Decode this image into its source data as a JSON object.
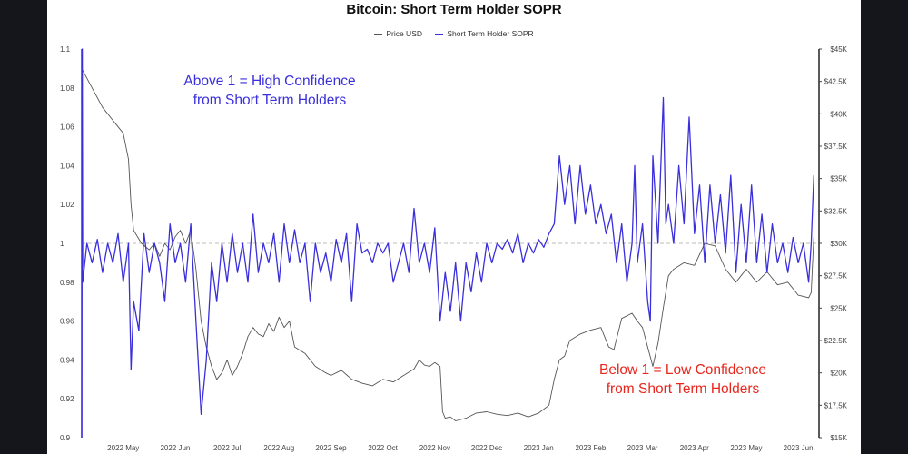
{
  "chart_data": {
    "type": "line",
    "title": "Bitcoin: Short Term Holder SOPR",
    "legend": [
      {
        "name": "Price USD",
        "color": "#555555"
      },
      {
        "name": "Short Term Holder SOPR",
        "color": "#3a2fdc"
      }
    ],
    "x_ticks": [
      "2022 May",
      "2022 Jun",
      "2022 Jul",
      "2022 Aug",
      "2022 Sep",
      "2022 Oct",
      "2022 Nov",
      "2022 Dec",
      "2023 Jan",
      "2023 Feb",
      "2023 Mar",
      "2023 Apr",
      "2023 May",
      "2023 Jun"
    ],
    "x_range": [
      -0.8,
      13.4
    ],
    "y_left": {
      "min": 0.9,
      "max": 1.1,
      "ticks": [
        "1.1",
        "1.08",
        "1.06",
        "1.04",
        "1.02",
        "1",
        "0.98",
        "0.96",
        "0.94",
        "0.92",
        "0.9"
      ],
      "values": [
        1.1,
        1.08,
        1.06,
        1.04,
        1.02,
        1.0,
        0.98,
        0.96,
        0.94,
        0.92,
        0.9
      ]
    },
    "y_right": {
      "min": 15000,
      "max": 45000,
      "ticks": [
        "$45K",
        "$42.5K",
        "$40K",
        "$37.5K",
        "$35K",
        "$32.5K",
        "$30K",
        "$27.5K",
        "$25K",
        "$22.5K",
        "$20K",
        "$17.5K",
        "$15K"
      ],
      "values": [
        45000,
        42500,
        40000,
        37500,
        35000,
        32500,
        30000,
        27500,
        25000,
        22500,
        20000,
        17500,
        15000
      ]
    },
    "reference_line": 1.0,
    "series": [
      {
        "name": "Price USD",
        "axis": "right",
        "color": "#555555",
        "points": [
          [
            -0.8,
            43500
          ],
          [
            -0.6,
            42000
          ],
          [
            -0.4,
            40500
          ],
          [
            -0.2,
            39500
          ],
          [
            0.0,
            38500
          ],
          [
            0.1,
            36500
          ],
          [
            0.15,
            33000
          ],
          [
            0.2,
            31000
          ],
          [
            0.35,
            30000
          ],
          [
            0.5,
            29500
          ],
          [
            0.6,
            30000
          ],
          [
            0.7,
            29000
          ],
          [
            0.8,
            30000
          ],
          [
            0.9,
            29500
          ],
          [
            1.0,
            30500
          ],
          [
            1.1,
            31000
          ],
          [
            1.2,
            30000
          ],
          [
            1.3,
            31000
          ],
          [
            1.4,
            28000
          ],
          [
            1.5,
            24000
          ],
          [
            1.6,
            22000
          ],
          [
            1.7,
            20500
          ],
          [
            1.8,
            19500
          ],
          [
            1.9,
            20000
          ],
          [
            2.0,
            21000
          ],
          [
            2.1,
            19800
          ],
          [
            2.2,
            20500
          ],
          [
            2.3,
            21500
          ],
          [
            2.4,
            22800
          ],
          [
            2.5,
            23500
          ],
          [
            2.6,
            23000
          ],
          [
            2.7,
            22800
          ],
          [
            2.8,
            23800
          ],
          [
            2.9,
            23200
          ],
          [
            3.0,
            24300
          ],
          [
            3.1,
            23500
          ],
          [
            3.2,
            24000
          ],
          [
            3.3,
            22000
          ],
          [
            3.5,
            21500
          ],
          [
            3.7,
            20500
          ],
          [
            3.9,
            20000
          ],
          [
            4.0,
            19800
          ],
          [
            4.2,
            20200
          ],
          [
            4.4,
            19500
          ],
          [
            4.6,
            19200
          ],
          [
            4.8,
            19000
          ],
          [
            5.0,
            19500
          ],
          [
            5.2,
            19300
          ],
          [
            5.4,
            19800
          ],
          [
            5.6,
            20300
          ],
          [
            5.7,
            21000
          ],
          [
            5.8,
            20600
          ],
          [
            5.9,
            20500
          ],
          [
            6.0,
            20800
          ],
          [
            6.1,
            20500
          ],
          [
            6.15,
            17000
          ],
          [
            6.2,
            16500
          ],
          [
            6.3,
            16600
          ],
          [
            6.4,
            16300
          ],
          [
            6.6,
            16500
          ],
          [
            6.8,
            16900
          ],
          [
            7.0,
            17000
          ],
          [
            7.2,
            16800
          ],
          [
            7.4,
            16700
          ],
          [
            7.6,
            16900
          ],
          [
            7.8,
            16600
          ],
          [
            8.0,
            16900
          ],
          [
            8.1,
            17200
          ],
          [
            8.2,
            17500
          ],
          [
            8.3,
            19500
          ],
          [
            8.4,
            21000
          ],
          [
            8.5,
            21300
          ],
          [
            8.6,
            22500
          ],
          [
            8.8,
            23000
          ],
          [
            9.0,
            23300
          ],
          [
            9.2,
            23500
          ],
          [
            9.35,
            22000
          ],
          [
            9.45,
            21800
          ],
          [
            9.6,
            24200
          ],
          [
            9.8,
            24600
          ],
          [
            9.9,
            24000
          ],
          [
            10.0,
            23500
          ],
          [
            10.1,
            22000
          ],
          [
            10.2,
            20500
          ],
          [
            10.3,
            22300
          ],
          [
            10.4,
            25000
          ],
          [
            10.5,
            27500
          ],
          [
            10.6,
            28000
          ],
          [
            10.8,
            28500
          ],
          [
            11.0,
            28300
          ],
          [
            11.2,
            30000
          ],
          [
            11.4,
            29800
          ],
          [
            11.6,
            28000
          ],
          [
            11.8,
            27000
          ],
          [
            12.0,
            28000
          ],
          [
            12.2,
            27000
          ],
          [
            12.4,
            27800
          ],
          [
            12.6,
            26800
          ],
          [
            12.8,
            27000
          ],
          [
            13.0,
            26000
          ],
          [
            13.2,
            25800
          ],
          [
            13.25,
            26200
          ],
          [
            13.3,
            30500
          ]
        ]
      },
      {
        "name": "Short Term Holder SOPR",
        "axis": "left",
        "color": "#3a2fdc",
        "points": [
          [
            -0.8,
            0.9
          ],
          [
            -0.79,
            1.1
          ],
          [
            -0.78,
            0.98
          ],
          [
            -0.7,
            1.0
          ],
          [
            -0.6,
            0.99
          ],
          [
            -0.5,
            1.002
          ],
          [
            -0.4,
            0.985
          ],
          [
            -0.3,
            1.0
          ],
          [
            -0.2,
            0.99
          ],
          [
            -0.1,
            1.005
          ],
          [
            0.0,
            0.98
          ],
          [
            0.1,
            1.0
          ],
          [
            0.15,
            0.935
          ],
          [
            0.2,
            0.97
          ],
          [
            0.3,
            0.955
          ],
          [
            0.4,
            1.005
          ],
          [
            0.5,
            0.985
          ],
          [
            0.6,
            1.0
          ],
          [
            0.7,
            0.99
          ],
          [
            0.8,
            0.97
          ],
          [
            0.9,
            1.01
          ],
          [
            1.0,
            0.99
          ],
          [
            1.1,
            1.0
          ],
          [
            1.2,
            0.98
          ],
          [
            1.3,
            1.01
          ],
          [
            1.4,
            0.96
          ],
          [
            1.5,
            0.912
          ],
          [
            1.6,
            0.94
          ],
          [
            1.7,
            0.99
          ],
          [
            1.8,
            0.97
          ],
          [
            1.9,
            1.0
          ],
          [
            2.0,
            0.98
          ],
          [
            2.1,
            1.005
          ],
          [
            2.2,
            0.985
          ],
          [
            2.3,
            1.0
          ],
          [
            2.4,
            0.98
          ],
          [
            2.5,
            1.015
          ],
          [
            2.6,
            0.985
          ],
          [
            2.7,
            1.0
          ],
          [
            2.8,
            0.99
          ],
          [
            2.9,
            1.005
          ],
          [
            3.0,
            0.98
          ],
          [
            3.1,
            1.01
          ],
          [
            3.2,
            0.99
          ],
          [
            3.3,
            1.007
          ],
          [
            3.4,
            0.99
          ],
          [
            3.5,
            1.0
          ],
          [
            3.6,
            0.97
          ],
          [
            3.7,
            1.0
          ],
          [
            3.8,
            0.985
          ],
          [
            3.9,
            0.995
          ],
          [
            4.0,
            0.98
          ],
          [
            4.1,
            1.002
          ],
          [
            4.2,
            0.99
          ],
          [
            4.3,
            1.005
          ],
          [
            4.4,
            0.97
          ],
          [
            4.5,
            1.01
          ],
          [
            4.6,
            0.995
          ],
          [
            4.7,
            0.997
          ],
          [
            4.8,
            0.99
          ],
          [
            4.9,
            1.0
          ],
          [
            5.0,
            0.995
          ],
          [
            5.1,
            1.0
          ],
          [
            5.2,
            0.98
          ],
          [
            5.3,
            0.99
          ],
          [
            5.4,
            1.0
          ],
          [
            5.5,
            0.985
          ],
          [
            5.6,
            1.018
          ],
          [
            5.7,
            0.99
          ],
          [
            5.8,
            1.0
          ],
          [
            5.9,
            0.985
          ],
          [
            6.0,
            1.008
          ],
          [
            6.1,
            0.96
          ],
          [
            6.2,
            0.985
          ],
          [
            6.3,
            0.965
          ],
          [
            6.4,
            0.99
          ],
          [
            6.5,
            0.96
          ],
          [
            6.6,
            0.99
          ],
          [
            6.7,
            0.975
          ],
          [
            6.8,
            0.995
          ],
          [
            6.9,
            0.98
          ],
          [
            7.0,
            1.0
          ],
          [
            7.1,
            0.99
          ],
          [
            7.2,
            1.0
          ],
          [
            7.3,
            0.997
          ],
          [
            7.4,
            1.002
          ],
          [
            7.5,
            0.995
          ],
          [
            7.6,
            1.005
          ],
          [
            7.7,
            0.99
          ],
          [
            7.8,
            1.0
          ],
          [
            7.9,
            0.995
          ],
          [
            8.0,
            1.002
          ],
          [
            8.1,
            0.998
          ],
          [
            8.2,
            1.005
          ],
          [
            8.3,
            1.01
          ],
          [
            8.4,
            1.045
          ],
          [
            8.5,
            1.02
          ],
          [
            8.6,
            1.04
          ],
          [
            8.7,
            1.01
          ],
          [
            8.8,
            1.04
          ],
          [
            8.9,
            1.015
          ],
          [
            9.0,
            1.03
          ],
          [
            9.1,
            1.01
          ],
          [
            9.2,
            1.02
          ],
          [
            9.3,
            1.005
          ],
          [
            9.4,
            1.015
          ],
          [
            9.5,
            0.99
          ],
          [
            9.6,
            1.01
          ],
          [
            9.7,
            0.98
          ],
          [
            9.8,
            1.0
          ],
          [
            9.85,
            1.04
          ],
          [
            9.9,
            0.99
          ],
          [
            10.0,
            1.01
          ],
          [
            10.1,
            0.97
          ],
          [
            10.15,
            0.96
          ],
          [
            10.2,
            1.045
          ],
          [
            10.3,
            1.0
          ],
          [
            10.4,
            1.075
          ],
          [
            10.45,
            1.01
          ],
          [
            10.5,
            1.02
          ],
          [
            10.6,
            1.0
          ],
          [
            10.7,
            1.04
          ],
          [
            10.8,
            1.01
          ],
          [
            10.9,
            1.065
          ],
          [
            11.0,
            1.005
          ],
          [
            11.1,
            1.03
          ],
          [
            11.2,
            0.99
          ],
          [
            11.3,
            1.03
          ],
          [
            11.4,
            1.0
          ],
          [
            11.5,
            1.025
          ],
          [
            11.6,
            0.995
          ],
          [
            11.7,
            1.035
          ],
          [
            11.8,
            0.985
          ],
          [
            11.9,
            1.02
          ],
          [
            12.0,
            0.99
          ],
          [
            12.1,
            1.03
          ],
          [
            12.2,
            0.99
          ],
          [
            12.3,
            1.015
          ],
          [
            12.4,
            0.985
          ],
          [
            12.5,
            1.01
          ],
          [
            12.6,
            0.99
          ],
          [
            12.7,
            1.0
          ],
          [
            12.8,
            0.985
          ],
          [
            12.9,
            1.003
          ],
          [
            13.0,
            0.99
          ],
          [
            13.1,
            1.0
          ],
          [
            13.2,
            0.98
          ],
          [
            13.25,
            1.0
          ],
          [
            13.3,
            1.035
          ]
        ]
      }
    ],
    "annotations": [
      {
        "lines": [
          "Above 1 = High Confidence",
          "from Short Term Holders"
        ],
        "color": "#3a2fdc",
        "placement": "top-left"
      },
      {
        "lines": [
          "Below 1 = Low Confidence",
          "from Short Term Holders"
        ],
        "color": "#e8261c",
        "placement": "bottom-right"
      }
    ]
  }
}
